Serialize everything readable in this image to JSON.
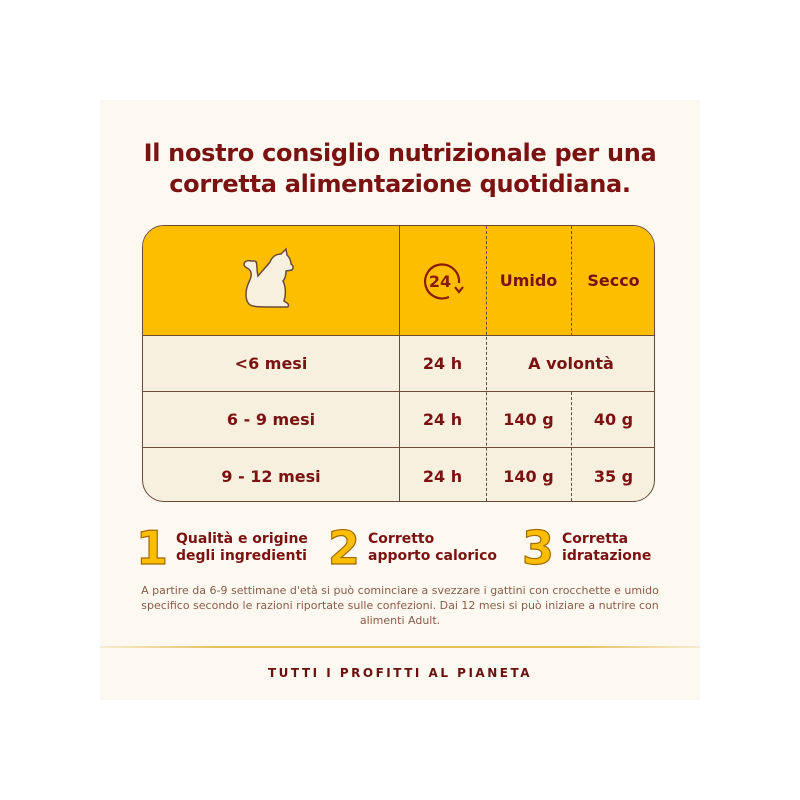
{
  "title": {
    "line1": "Il nostro consiglio nutrizionale per una",
    "line2": "corretta alimentazione quotidiana."
  },
  "table": {
    "header": {
      "cat_icon": "cat-silhouette-icon",
      "clock_icon": "24h-cycle-icon",
      "clock_label": "24",
      "col_wet": "Umido",
      "col_dry": "Secco"
    },
    "rows": [
      {
        "age": "<6 mesi",
        "period": "24 h",
        "merged": "A volontà"
      },
      {
        "age": "6 - 9 mesi",
        "period": "24 h",
        "wet": "140 g",
        "dry": "40 g"
      },
      {
        "age": "9 - 12 mesi",
        "period": "24 h",
        "wet": "140 g",
        "dry": "35 g"
      }
    ]
  },
  "features": [
    {
      "number": "1",
      "line1": "Qualità e origine",
      "line2": "degli ingredienti"
    },
    {
      "number": "2",
      "line1": "Corretto",
      "line2": "apporto calorico"
    },
    {
      "number": "3",
      "line1": "Corretta",
      "line2": "idratazione"
    }
  ],
  "note": "A partire da 6-9 settimane d'età si può cominciare a svezzare i gattini con crocchette e umido specifico secondo le razioni riportate sulle confezioni. Dai 12 mesi si può iniziare a nutrire con alimenti Adult.",
  "footer": "TUTTI I PROFITTI AL PIANETA",
  "colors": {
    "accent": "#fdbe00",
    "text": "#7a1212",
    "background": "#fdf9f0",
    "row": "#f7f0de"
  }
}
